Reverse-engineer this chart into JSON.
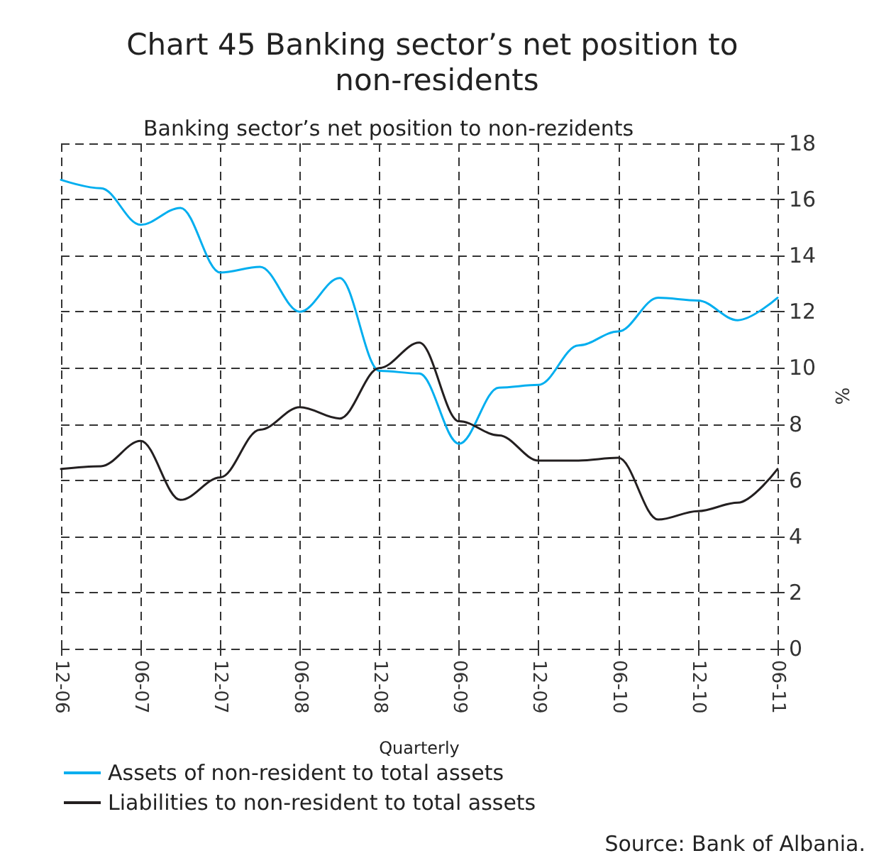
{
  "chart_data": {
    "type": "line",
    "title": "Chart 45 Banking sector’s net position to non-residents",
    "subtitle": "Banking sector’s net position to non-rezidents",
    "xlabel": "Quarterly",
    "ylabel": "%",
    "categories": [
      "12-06",
      null,
      "06-07",
      null,
      "12-07",
      null,
      "06-08",
      null,
      "12-08",
      null,
      "06-09",
      null,
      "12-09",
      null,
      "06-10",
      null,
      "12-10",
      null,
      "06-11"
    ],
    "series": [
      {
        "name": "Assets of non-resident to total assets",
        "color": "#00aeef",
        "values": [
          16.7,
          16.4,
          15.1,
          15.7,
          13.4,
          13.6,
          12.0,
          13.2,
          9.9,
          9.8,
          7.3,
          9.3,
          9.4,
          10.8,
          11.3,
          12.5,
          12.4,
          11.7,
          12.5
        ]
      },
      {
        "name": "Liabilities to non-resident to total assets",
        "color": "#231f20",
        "values": [
          6.4,
          6.5,
          7.4,
          5.3,
          6.1,
          7.8,
          8.6,
          8.2,
          10.0,
          10.9,
          8.1,
          7.6,
          6.7,
          6.7,
          6.8,
          4.6,
          4.9,
          5.2,
          6.4
        ]
      }
    ],
    "ylim": [
      0,
      18
    ],
    "yticks": [
      0,
      2,
      4,
      6,
      8,
      10,
      12,
      14,
      16,
      18
    ],
    "grid": true,
    "legend": "bottom",
    "marker": "none",
    "line_style": "solid",
    "annotations": [
      "Source: Bank of Albania."
    ]
  }
}
